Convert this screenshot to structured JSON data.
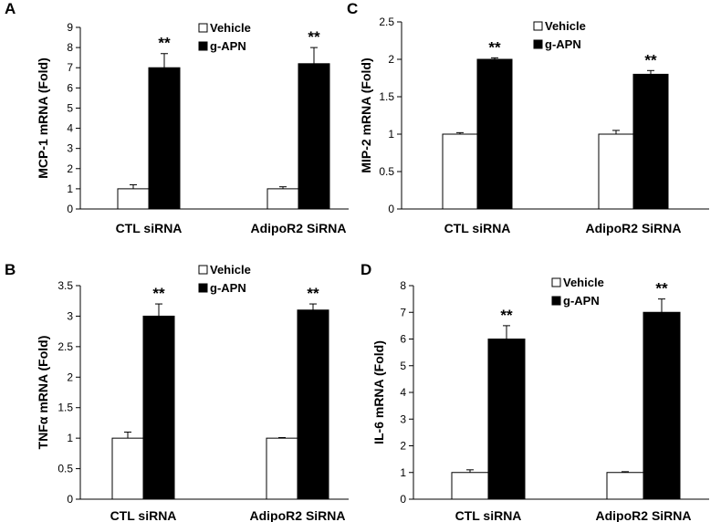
{
  "chart_data": [
    {
      "panel": "A",
      "type": "bar",
      "categories": [
        "CTL siRNA",
        "AdipoR2 SiRNA"
      ],
      "series": [
        {
          "name": "Vehicle",
          "values": [
            1,
            1
          ],
          "errors": [
            0.2,
            0.1
          ],
          "color": "#ffffff"
        },
        {
          "name": "g-APN",
          "values": [
            7,
            7.2
          ],
          "errors": [
            0.7,
            0.8
          ],
          "color": "#000000"
        }
      ],
      "annotations": [
        "**",
        "**"
      ],
      "ylabel": "MCP-1 mRNA (Fold)",
      "ylim": [
        0,
        9
      ],
      "yticks": [
        "0",
        "1",
        "2",
        "3",
        "4",
        "5",
        "6",
        "7",
        "8",
        "9"
      ],
      "grid": false,
      "legend": "top-right"
    },
    {
      "panel": "B",
      "type": "bar",
      "categories": [
        "CTL siRNA",
        "AdipoR2 SiRNA"
      ],
      "series": [
        {
          "name": "Vehicle",
          "values": [
            1,
            1
          ],
          "errors": [
            0.1,
            0.01
          ],
          "color": "#ffffff"
        },
        {
          "name": "g-APN",
          "values": [
            3,
            3.1
          ],
          "errors": [
            0.2,
            0.1
          ],
          "color": "#000000"
        }
      ],
      "annotations": [
        "**",
        "**"
      ],
      "ylabel": "TNFα mRNA (Fold)",
      "ylim": [
        0,
        3.5
      ],
      "yticks": [
        "0",
        "0.5",
        "1",
        "1.5",
        "2",
        "2.5",
        "3",
        "3.5"
      ],
      "grid": false,
      "legend": "top-right"
    },
    {
      "panel": "C",
      "type": "bar",
      "categories": [
        "CTL siRNA",
        "AdipoR2 SiRNA"
      ],
      "series": [
        {
          "name": "Vehicle",
          "values": [
            1,
            1
          ],
          "errors": [
            0.02,
            0.05
          ],
          "color": "#ffffff"
        },
        {
          "name": "g-APN",
          "values": [
            2,
            1.8
          ],
          "errors": [
            0.02,
            0.05
          ],
          "color": "#000000"
        }
      ],
      "annotations": [
        "**",
        "**"
      ],
      "ylabel": "MIP-2 mRNA (Fold)",
      "ylim": [
        0,
        2.5
      ],
      "yticks": [
        "0",
        "0.5",
        "1",
        "1.5",
        "2",
        "2.5"
      ],
      "grid": false,
      "legend": "top-right"
    },
    {
      "panel": "D",
      "type": "bar",
      "categories": [
        "CTL siRNA",
        "AdipoR2 SiRNA"
      ],
      "series": [
        {
          "name": "Vehicle",
          "values": [
            1,
            1
          ],
          "errors": [
            0.1,
            0.03
          ],
          "color": "#ffffff"
        },
        {
          "name": "g-APN",
          "values": [
            6,
            7
          ],
          "errors": [
            0.5,
            0.5
          ],
          "color": "#000000"
        }
      ],
      "annotations": [
        "**",
        "**"
      ],
      "ylabel": "IL-6 mRNA (Fold)",
      "ylim": [
        0,
        8
      ],
      "yticks": [
        "0",
        "1",
        "2",
        "3",
        "4",
        "5",
        "6",
        "7",
        "8"
      ],
      "grid": false,
      "legend": "top-right"
    }
  ]
}
